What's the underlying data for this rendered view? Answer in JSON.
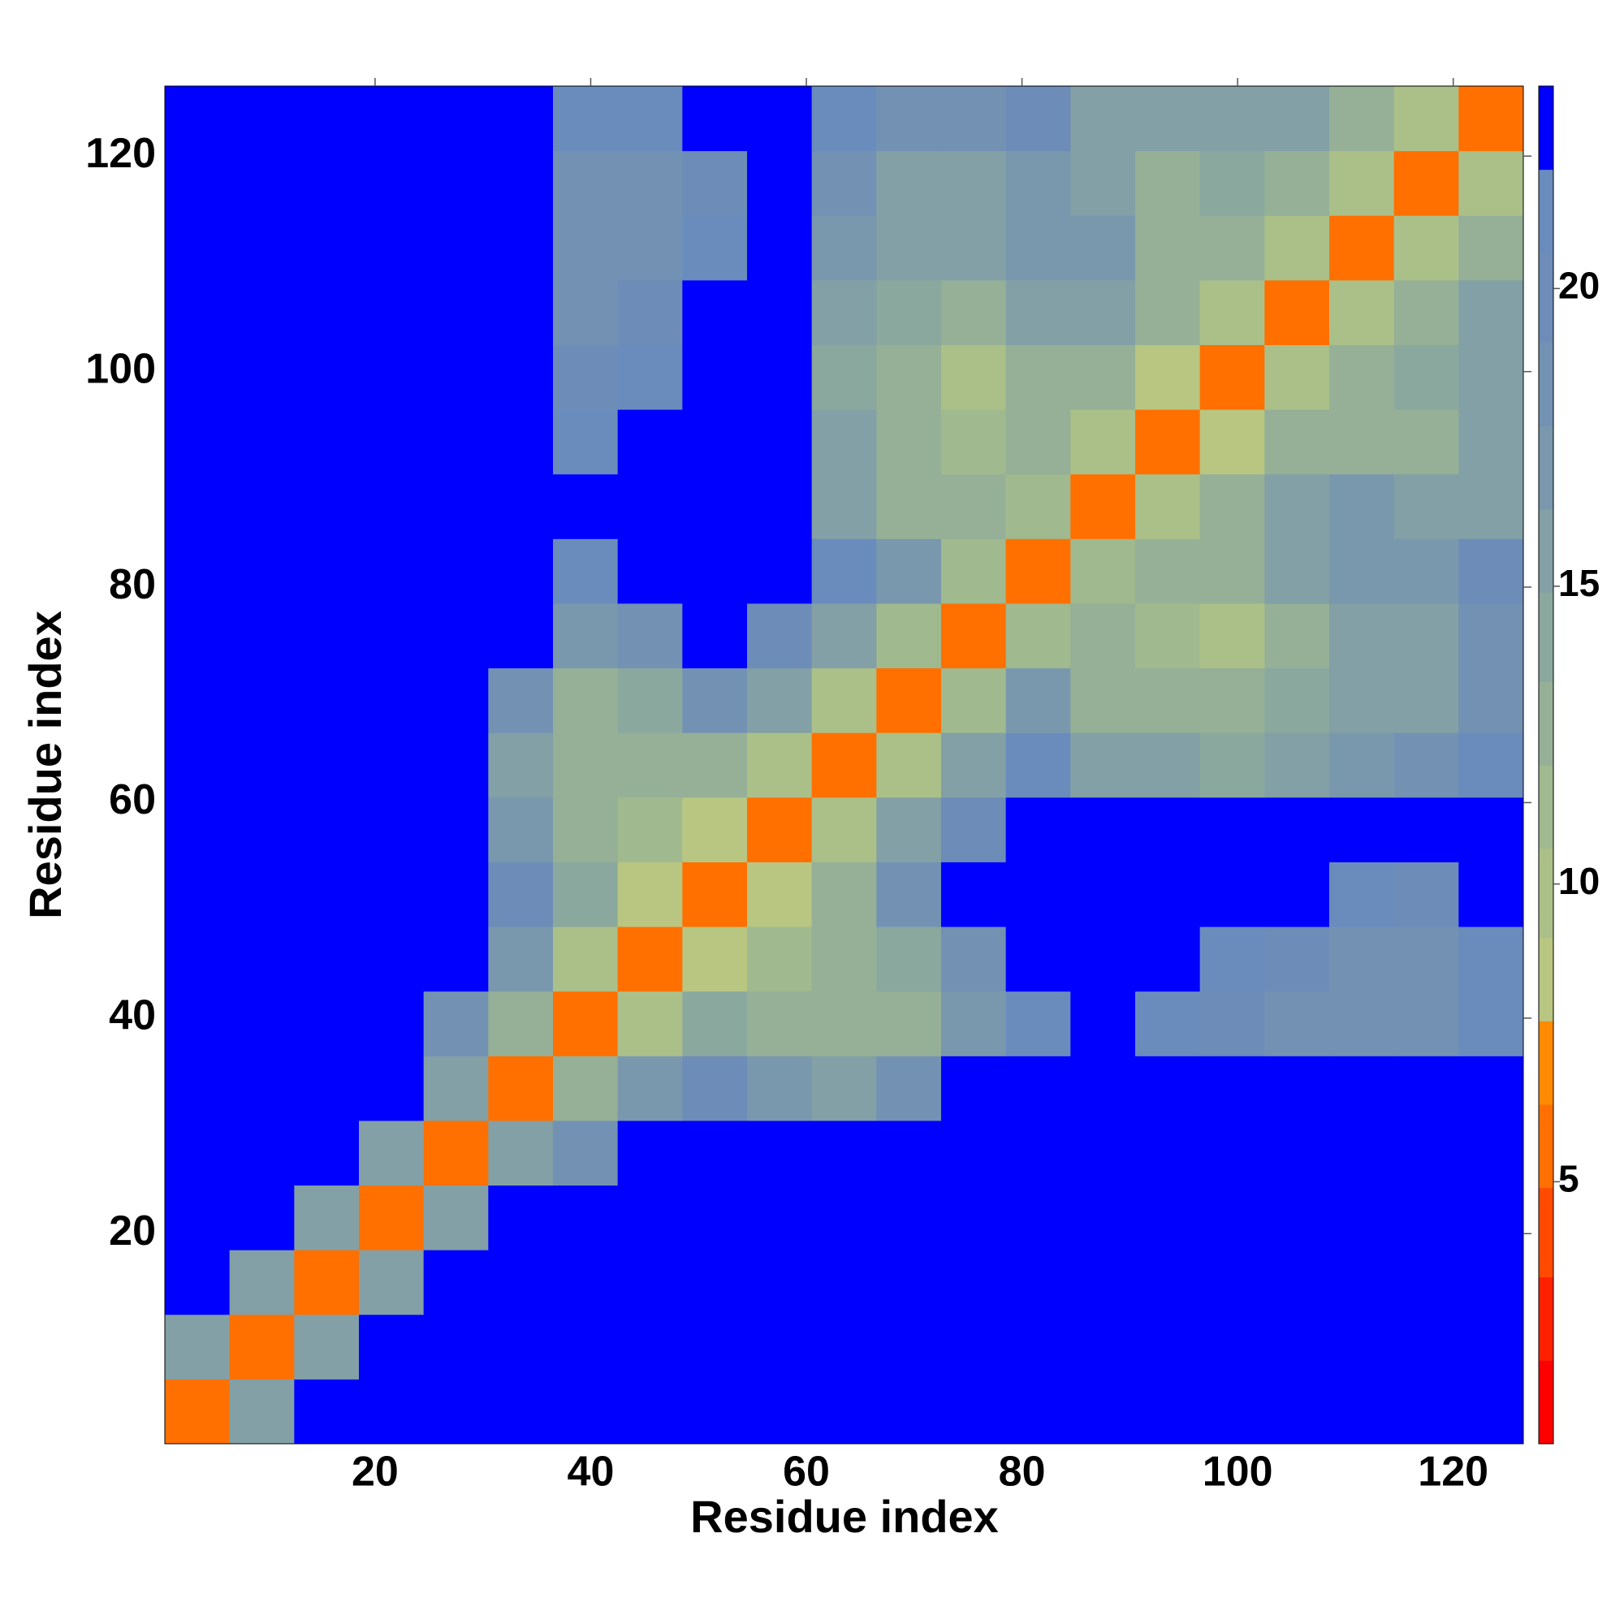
{
  "chart_data": {
    "type": "heatmap",
    "x_label": "Residue index",
    "y_label": "Residue index",
    "x_bins": [
      0.5,
      6.5,
      12.5,
      18.5,
      24.5,
      30.5,
      36.5,
      42.5,
      48.5,
      54.5,
      60.5,
      66.5,
      72.5,
      78.5,
      84.5,
      90.5,
      96.5,
      102.5,
      108.5,
      114.5,
      120.5,
      126.5
    ],
    "y_bins": [
      0.5,
      6.5,
      12.5,
      18.5,
      24.5,
      30.5,
      36.5,
      42.5,
      48.5,
      54.5,
      60.5,
      66.5,
      72.5,
      78.5,
      84.5,
      90.5,
      96.5,
      102.5,
      108.5,
      114.5,
      120.5,
      126.5
    ],
    "values": [
      [
        5,
        15,
        23,
        23,
        23,
        23,
        23,
        23,
        23,
        23,
        23,
        23,
        23,
        23,
        23,
        23,
        23,
        23,
        23,
        23,
        23
      ],
      [
        15,
        5,
        15,
        23,
        23,
        23,
        23,
        23,
        23,
        23,
        23,
        23,
        23,
        23,
        23,
        23,
        23,
        23,
        23,
        23,
        23
      ],
      [
        23,
        15,
        5,
        15,
        23,
        23,
        23,
        23,
        23,
        23,
        23,
        23,
        23,
        23,
        23,
        23,
        23,
        23,
        23,
        23,
        23
      ],
      [
        23,
        23,
        15,
        5,
        15,
        23,
        23,
        23,
        23,
        23,
        23,
        23,
        23,
        23,
        23,
        23,
        23,
        23,
        23,
        23,
        23
      ],
      [
        23,
        23,
        23,
        15,
        5,
        15,
        19,
        22,
        23,
        23,
        23,
        23,
        23,
        23,
        23,
        23,
        23,
        23,
        23,
        23,
        23
      ],
      [
        23,
        23,
        23,
        23,
        15,
        5,
        12,
        17,
        20,
        17,
        16,
        19,
        23,
        23,
        23,
        23,
        23,
        23,
        23,
        23,
        23
      ],
      [
        23,
        23,
        23,
        23,
        19,
        12,
        5,
        10,
        14,
        13,
        12,
        13,
        17,
        21,
        23,
        21,
        20,
        19,
        19,
        19,
        21
      ],
      [
        23,
        23,
        23,
        23,
        22,
        17,
        10,
        5,
        9,
        11,
        12,
        14,
        19,
        23,
        23,
        23,
        21,
        20,
        19,
        18,
        21
      ],
      [
        23,
        23,
        23,
        23,
        23,
        20,
        14,
        9,
        5,
        9,
        13,
        18,
        23,
        23,
        23,
        23,
        23,
        22,
        21,
        20,
        23
      ],
      [
        23,
        23,
        23,
        23,
        23,
        17,
        13,
        11,
        9,
        5,
        10,
        16,
        20,
        23,
        23,
        23,
        23,
        23,
        23,
        23,
        23
      ],
      [
        23,
        23,
        23,
        23,
        23,
        16,
        12,
        12,
        13,
        10,
        5,
        10,
        16,
        21,
        15,
        16,
        14,
        15,
        17,
        18,
        21
      ],
      [
        23,
        23,
        23,
        23,
        23,
        19,
        13,
        14,
        18,
        16,
        10,
        5,
        11,
        17,
        13,
        13,
        12,
        14,
        15,
        16,
        19
      ],
      [
        23,
        23,
        23,
        23,
        23,
        23,
        17,
        19,
        23,
        20,
        16,
        11,
        5,
        11,
        12,
        11,
        10,
        13,
        15,
        16,
        19
      ],
      [
        23,
        23,
        23,
        23,
        23,
        23,
        21,
        23,
        23,
        23,
        21,
        17,
        11,
        5,
        11,
        12,
        12,
        16,
        17,
        17,
        20
      ],
      [
        23,
        23,
        23,
        23,
        23,
        23,
        23,
        23,
        23,
        23,
        15,
        13,
        12,
        11,
        5,
        10,
        12,
        15,
        17,
        16,
        16
      ],
      [
        23,
        23,
        23,
        23,
        23,
        23,
        21,
        23,
        23,
        23,
        16,
        13,
        11,
        12,
        10,
        5,
        9,
        12,
        13,
        13,
        15
      ],
      [
        23,
        23,
        23,
        23,
        23,
        23,
        20,
        21,
        23,
        23,
        14,
        12,
        10,
        12,
        12,
        9,
        5,
        10,
        13,
        14,
        16
      ],
      [
        23,
        23,
        23,
        23,
        23,
        23,
        19,
        20,
        22,
        23,
        15,
        14,
        13,
        16,
        15,
        12,
        10,
        5,
        10,
        13,
        15
      ],
      [
        23,
        23,
        23,
        23,
        23,
        23,
        19,
        19,
        21,
        23,
        17,
        15,
        15,
        17,
        17,
        13,
        13,
        10,
        5,
        10,
        13
      ],
      [
        23,
        23,
        23,
        23,
        23,
        23,
        19,
        18,
        20,
        23,
        18,
        16,
        16,
        17,
        16,
        13,
        14,
        13,
        10,
        5,
        10
      ],
      [
        23,
        23,
        23,
        23,
        23,
        23,
        21,
        21,
        23,
        23,
        21,
        19,
        19,
        20,
        16,
        15,
        16,
        15,
        13,
        10,
        5
      ]
    ],
    "xlim": [
      0.5,
      126.5
    ],
    "ylim": [
      0.5,
      126.5
    ],
    "xticks": [
      20,
      40,
      60,
      80,
      100,
      120
    ],
    "yticks": [
      20,
      40,
      60,
      80,
      100,
      120
    ],
    "colorbar": {
      "lim": [
        0.6,
        23.4
      ],
      "ticks": [
        5,
        10,
        15,
        20
      ],
      "bounds": [
        0.6,
        2.0,
        3.4,
        4.9,
        6.3,
        7.7,
        9.1,
        10.6,
        12.0,
        13.4,
        14.9,
        16.3,
        17.7,
        19.1,
        20.6,
        22.0,
        23.4
      ],
      "colors": [
        "#ff0000",
        "#ff2000",
        "#ff4a00",
        "#ff7000",
        "#ff8c00",
        "#b8c682",
        "#abc089",
        "#a0b98f",
        "#95b096",
        "#8ba89e",
        "#82a0a6",
        "#7a98ad",
        "#7392b3",
        "#6d8cb8",
        "#6a8cbd",
        "#0000ff"
      ]
    }
  }
}
